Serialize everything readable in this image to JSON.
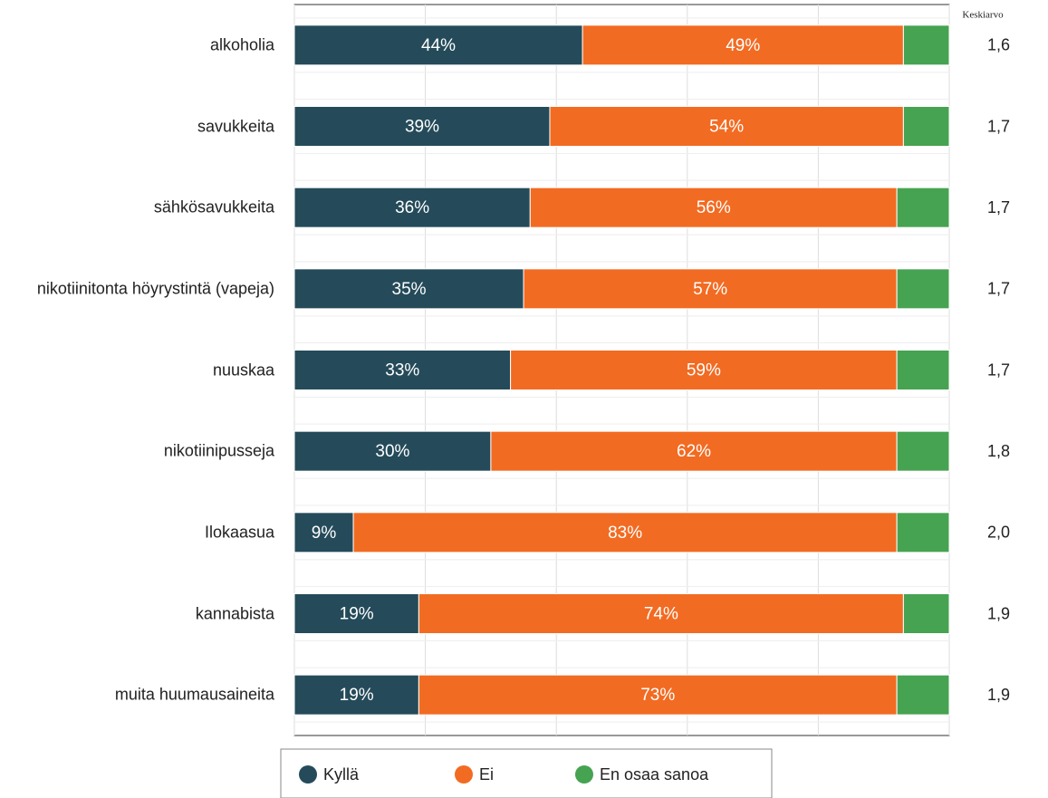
{
  "chart_data": {
    "type": "stacked_bar_horizontal",
    "categories": [
      "alkoholia",
      "savukkeita",
      "sähkösavukkeita",
      "nikotiinitonta höyrystintä (vapeja)",
      "nuuskaa",
      "nikotiinipusseja",
      "Ilokaasua",
      "kannabista",
      "muita huumausaineita"
    ],
    "series": [
      {
        "name": "Kyllä",
        "color": "#254b5a",
        "values": [
          44,
          39,
          36,
          35,
          33,
          30,
          9,
          19,
          19
        ],
        "value_labels": [
          "44%",
          "39%",
          "36%",
          "35%",
          "33%",
          "30%",
          "9%",
          "19%",
          "19%"
        ]
      },
      {
        "name": "Ei",
        "color": "#f26b22",
        "values": [
          49,
          54,
          56,
          57,
          59,
          62,
          83,
          74,
          73
        ],
        "value_labels": [
          "49%",
          "54%",
          "56%",
          "57%",
          "59%",
          "62%",
          "83%",
          "74%",
          "73%"
        ]
      },
      {
        "name": "En osaa sanoa",
        "color": "#46a351",
        "values": [
          7,
          7,
          8,
          8,
          8,
          8,
          8,
          7,
          8
        ]
      }
    ],
    "xlim": [
      0,
      100
    ],
    "xticks": [
      0,
      20,
      40,
      60,
      80,
      100
    ],
    "grid": true,
    "averages": {
      "title": "Keskiarvo",
      "values": [
        1.6,
        1.7,
        1.7,
        1.7,
        1.7,
        1.8,
        2.0,
        1.9,
        1.9
      ],
      "value_labels": [
        "1,6",
        "1,7",
        "1,7",
        "1,7",
        "1,7",
        "1,8",
        "2,0",
        "1,9",
        "1,9"
      ]
    },
    "legend": "bottom"
  }
}
